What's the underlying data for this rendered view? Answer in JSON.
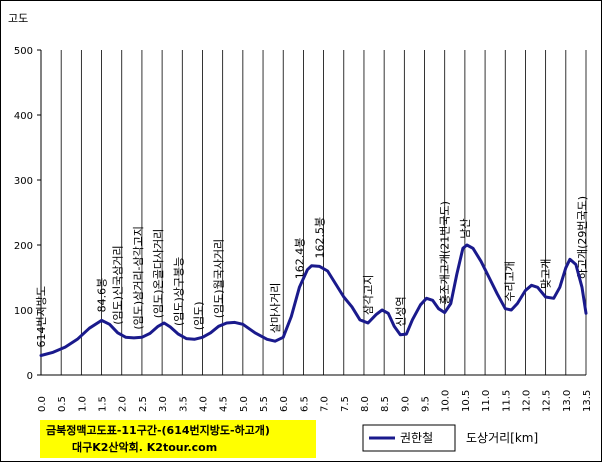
{
  "chart_data": {
    "type": "line",
    "title_lines": [
      "금북정맥고도표-11구간-(614번지방도-하고개)",
      "대구K2산악회. K2tour.com"
    ],
    "ylabel": "고도",
    "xlabel": "도상거리[km]",
    "xlim": [
      0,
      13.5
    ],
    "ylim": [
      0,
      500
    ],
    "x_ticks": [
      "0.0",
      "0.5",
      "1.0",
      "1.5",
      "2.0",
      "2.5",
      "3.0",
      "3.5",
      "4.0",
      "4.5",
      "5.0",
      "5.5",
      "6.0",
      "6.5",
      "7.0",
      "7.5",
      "8.0",
      "8.5",
      "9.0",
      "9.5",
      "10.0",
      "10.5",
      "11.0",
      "11.5",
      "12.0",
      "12.5",
      "13.0",
      "13.5"
    ],
    "y_ticks": [
      "0",
      "100",
      "200",
      "300",
      "400",
      "500"
    ],
    "grid": "vertical",
    "legend_position": "bottom-right",
    "series": [
      {
        "name": "권한철",
        "color": "#1a1a8c",
        "x": [
          0.0,
          0.3,
          0.6,
          0.9,
          1.2,
          1.5,
          1.7,
          1.9,
          2.1,
          2.3,
          2.5,
          2.7,
          2.9,
          3.05,
          3.2,
          3.4,
          3.6,
          3.8,
          4.0,
          4.2,
          4.4,
          4.6,
          4.8,
          5.0,
          5.3,
          5.6,
          5.8,
          6.0,
          6.2,
          6.4,
          6.6,
          6.7,
          6.9,
          7.1,
          7.3,
          7.5,
          7.7,
          7.9,
          8.1,
          8.3,
          8.45,
          8.6,
          8.75,
          8.9,
          9.05,
          9.2,
          9.4,
          9.55,
          9.7,
          9.85,
          10.0,
          10.15,
          10.3,
          10.45,
          10.55,
          10.7,
          10.9,
          11.1,
          11.3,
          11.5,
          11.65,
          11.8,
          12.0,
          12.15,
          12.3,
          12.5,
          12.7,
          12.85,
          13.0,
          13.1,
          13.25,
          13.4,
          13.5
        ],
        "y": [
          30,
          35,
          43,
          55,
          72,
          84,
          78,
          65,
          58,
          57,
          58,
          64,
          75,
          80,
          74,
          63,
          56,
          55,
          58,
          65,
          75,
          80,
          81,
          78,
          65,
          55,
          52,
          58,
          90,
          135,
          162,
          168,
          167,
          160,
          140,
          120,
          105,
          85,
          80,
          93,
          100,
          95,
          75,
          62,
          63,
          85,
          108,
          118,
          115,
          102,
          96,
          110,
          155,
          195,
          200,
          195,
          175,
          150,
          125,
          102,
          100,
          110,
          130,
          138,
          135,
          120,
          118,
          135,
          165,
          178,
          170,
          135,
          95
        ]
      }
    ],
    "annotations": [
      {
        "x": 0.0,
        "text": "614번지방도"
      },
      {
        "x": 1.5,
        "text": "84.6봉"
      },
      {
        "x": 1.9,
        "text": "(임도)신국삼거리"
      },
      {
        "x": 2.4,
        "text": "(임도)삼거리-삼각고지"
      },
      {
        "x": 2.9,
        "text": "(임도)온골다사거리"
      },
      {
        "x": 3.4,
        "text": "(임도)상구봉능"
      },
      {
        "x": 3.9,
        "text": "(임도)"
      },
      {
        "x": 4.4,
        "text": "(임도)월국사거리"
      },
      {
        "x": 5.8,
        "text": "살마사거리"
      },
      {
        "x": 6.4,
        "text": "162.4봉"
      },
      {
        "x": 6.9,
        "text": "162.5봉"
      },
      {
        "x": 8.1,
        "text": "삼각고지"
      },
      {
        "x": 8.9,
        "text": "신성역"
      },
      {
        "x": 10.0,
        "text": "홍조개고개(21번국도)"
      },
      {
        "x": 10.5,
        "text": "남산"
      },
      {
        "x": 11.6,
        "text": "수리고개"
      },
      {
        "x": 12.5,
        "text": "맞고개"
      },
      {
        "x": 13.4,
        "text": "하고개(29번국도)"
      }
    ]
  }
}
